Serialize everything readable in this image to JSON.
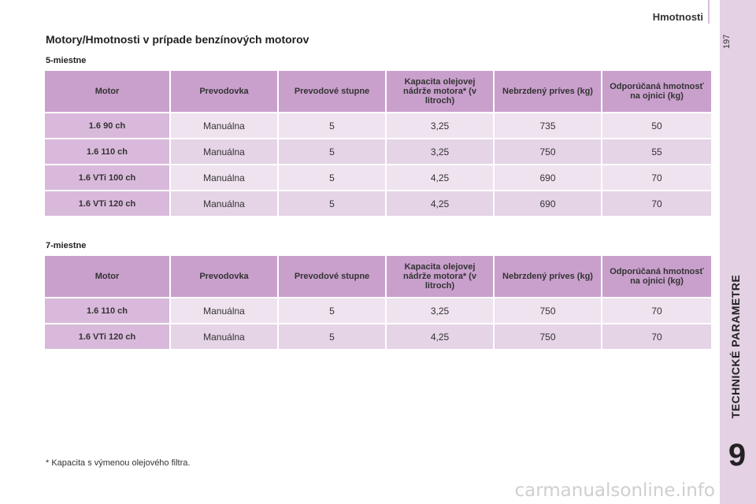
{
  "header": {
    "title": "Hmotnosti",
    "page_number": "197"
  },
  "side": {
    "label": "TECHNICKÉ PARAMETRE",
    "chapter": "9"
  },
  "page_title": "Motory/Hmotnosti v prípade benzínových motorov",
  "columns": [
    "Motor",
    "Prevodovka",
    "Prevodové stupne",
    "Kapacita olejovej nádrže motora* (v litroch)",
    "Nebrzdený príves (kg)",
    "Odporúčaná hmotnosť na ojnici (kg)"
  ],
  "tables": [
    {
      "title": "5-miestne",
      "rows": [
        [
          "1.6 90 ch",
          "Manuálna",
          "5",
          "3,25",
          "735",
          "50"
        ],
        [
          "1.6 110 ch",
          "Manuálna",
          "5",
          "3,25",
          "750",
          "55"
        ],
        [
          "1.6 VTi 100 ch",
          "Manuálna",
          "5",
          "4,25",
          "690",
          "70"
        ],
        [
          "1.6 VTi 120 ch",
          "Manuálna",
          "5",
          "4,25",
          "690",
          "70"
        ]
      ]
    },
    {
      "title": "7-miestne",
      "rows": [
        [
          "1.6 110 ch",
          "Manuálna",
          "5",
          "3,25",
          "750",
          "70"
        ],
        [
          "1.6 VTi 120 ch",
          "Manuálna",
          "5",
          "4,25",
          "750",
          "70"
        ]
      ]
    }
  ],
  "footnote": "* Kapacita s výmenou olejového filtra.",
  "watermark": "carmanualsonline.info"
}
